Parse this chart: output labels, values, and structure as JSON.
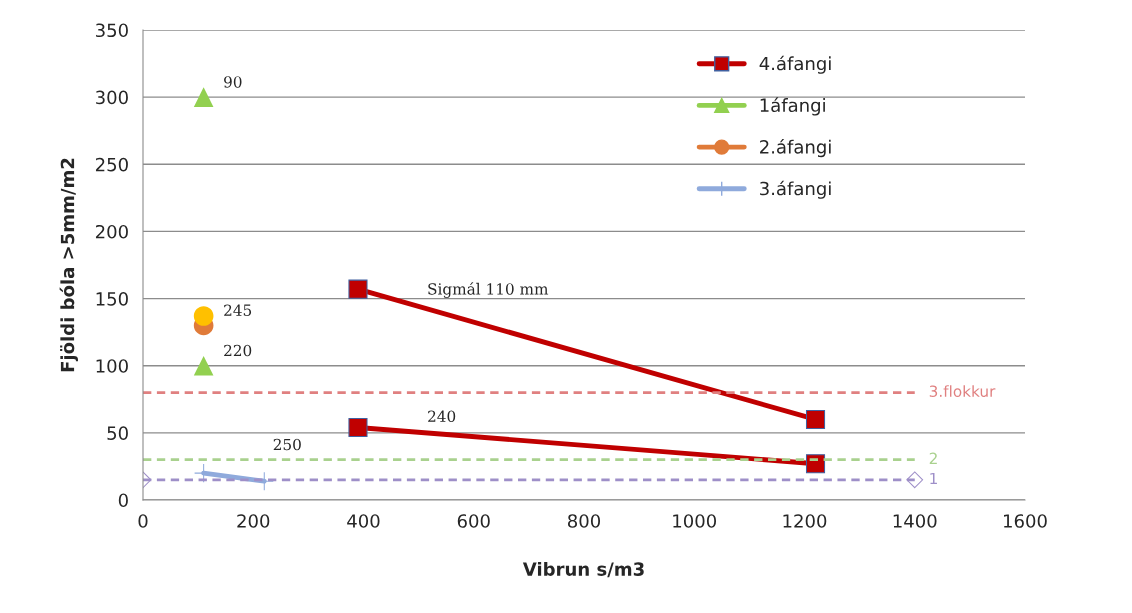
{
  "chart_data": {
    "type": "line",
    "xlabel": "Vibrun s/m3",
    "ylabel": "Fjöldi bóla >5mm/m2",
    "xlim": [
      0,
      1600
    ],
    "xticks": [
      0,
      200,
      400,
      600,
      800,
      1000,
      1200,
      1400,
      1600
    ],
    "ylim": [
      0,
      350
    ],
    "yticks": [
      0,
      50,
      100,
      150,
      200,
      250,
      300,
      350
    ],
    "grid": "y",
    "legend": "top right",
    "series": [
      {
        "name": "4.áfangi",
        "color": "#c00000",
        "marker": "square",
        "line_style": "solid",
        "x": [
          390,
          1220
        ],
        "values": [
          157,
          60
        ]
      },
      {
        "name": "1áfangi",
        "type": "scatter",
        "color": "#92d050",
        "marker": "triangle",
        "x": [
          110,
          110
        ],
        "values": [
          300,
          100
        ]
      },
      {
        "name": "2.áfangi",
        "type": "scatter",
        "color": "#e07b39",
        "marker": "circle",
        "x": [
          110
        ],
        "values": [
          130
        ]
      },
      {
        "name": "3.áfangi",
        "color": "#8faadc",
        "marker": "cross",
        "line_style": "solid",
        "x": [
          110,
          220
        ],
        "values": [
          20,
          14
        ]
      },
      {
        "color": "#c00000",
        "marker": "square",
        "line_style": "solid",
        "x": [
          390,
          1220
        ],
        "values": [
          54,
          27
        ]
      },
      {
        "type": "scatter",
        "color": "#ffc000",
        "marker": "circle",
        "x": [
          110
        ],
        "values": [
          137
        ]
      },
      {
        "name": "3.flokkur",
        "color": "#e08080",
        "marker": "none",
        "line_style": "dashed",
        "x": [
          0,
          1400
        ],
        "values": [
          80,
          80
        ]
      },
      {
        "name": "2",
        "color": "#a9d18e",
        "marker": "none",
        "line_style": "dashed",
        "x": [
          0,
          1400
        ],
        "values": [
          30,
          30
        ]
      },
      {
        "name": "1",
        "color": "#9e8fc8",
        "marker": "diamond",
        "line_style": "dashed",
        "x": [
          0,
          1400
        ],
        "values": [
          15,
          15
        ]
      }
    ],
    "annotations": [
      {
        "text": "90",
        "x": 110,
        "y": 300
      },
      {
        "text": "245",
        "x": 110,
        "y": 130
      },
      {
        "text": "220",
        "x": 110,
        "y": 100
      },
      {
        "text": "240",
        "x": 480,
        "y": 51
      },
      {
        "text": "250",
        "x": 200,
        "y": 30
      },
      {
        "text": "Sigmál 110 mm",
        "x": 480,
        "y": 146
      }
    ]
  }
}
